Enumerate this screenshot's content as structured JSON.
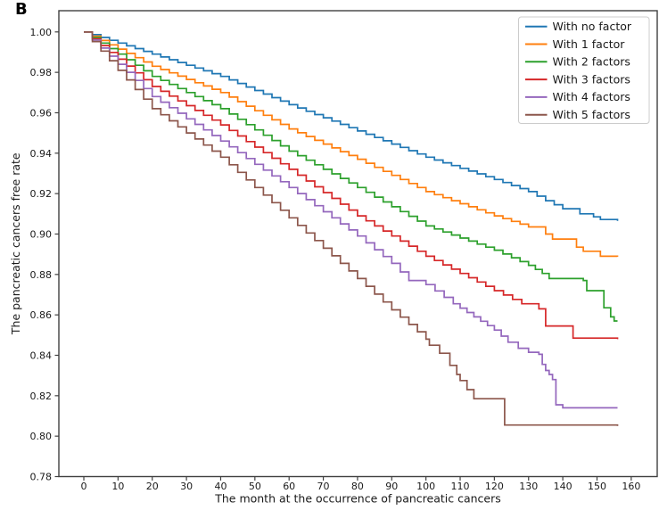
{
  "chart_data": {
    "type": "line",
    "subtype": "step-survival",
    "panel_label": "B",
    "title": "",
    "xlabel": "The month at the occurrence of pancreatic cancers",
    "ylabel": "The pancreatic cancers free rate",
    "xlim": [
      -7.3,
      167.6
    ],
    "ylim": [
      0.78,
      1.0105
    ],
    "x_ticks": [
      0,
      10,
      20,
      30,
      40,
      50,
      60,
      70,
      80,
      90,
      100,
      110,
      120,
      130,
      140,
      150,
      160
    ],
    "y_ticks": [
      0.78,
      0.8,
      0.82,
      0.84,
      0.86,
      0.88,
      0.9,
      0.92,
      0.94,
      0.96,
      0.98,
      1.0
    ],
    "grid": false,
    "legend_position": "upper right",
    "axis_color": "#404040",
    "series": [
      {
        "name": "With no factor",
        "color": "#1f77b4",
        "points": [
          [
            0,
            1.0
          ],
          [
            10,
            0.9945
          ],
          [
            20,
            0.989
          ],
          [
            30,
            0.9835
          ],
          [
            40,
            0.978
          ],
          [
            50,
            0.971
          ],
          [
            60,
            0.964
          ],
          [
            70,
            0.9575
          ],
          [
            80,
            0.951
          ],
          [
            90,
            0.9445
          ],
          [
            100,
            0.938
          ],
          [
            110,
            0.9325
          ],
          [
            120,
            0.927
          ],
          [
            130,
            0.921
          ],
          [
            135,
            0.9165
          ],
          [
            140,
            0.9125
          ],
          [
            145,
            0.91
          ],
          [
            149,
            0.9085
          ],
          [
            151,
            0.9072
          ],
          [
            156,
            0.9065
          ]
        ]
      },
      {
        "name": "With 1 factor",
        "color": "#ff7f0e",
        "points": [
          [
            0,
            1.0
          ],
          [
            10,
            0.9915
          ],
          [
            20,
            0.983
          ],
          [
            30,
            0.9765
          ],
          [
            40,
            0.97
          ],
          [
            50,
            0.961
          ],
          [
            60,
            0.952
          ],
          [
            70,
            0.9445
          ],
          [
            80,
            0.937
          ],
          [
            90,
            0.929
          ],
          [
            100,
            0.921
          ],
          [
            110,
            0.915
          ],
          [
            120,
            0.909
          ],
          [
            130,
            0.9035
          ],
          [
            135,
            0.9
          ],
          [
            137,
            0.8975
          ],
          [
            143,
            0.8975
          ],
          [
            144,
            0.8935
          ],
          [
            146,
            0.8915
          ],
          [
            150,
            0.8915
          ],
          [
            151,
            0.889
          ],
          [
            156,
            0.8888
          ]
        ]
      },
      {
        "name": "With 2 factors",
        "color": "#2ca02c",
        "points": [
          [
            0,
            1.0
          ],
          [
            10,
            0.989
          ],
          [
            20,
            0.978
          ],
          [
            30,
            0.97
          ],
          [
            40,
            0.962
          ],
          [
            50,
            0.9515
          ],
          [
            60,
            0.941
          ],
          [
            70,
            0.932
          ],
          [
            80,
            0.923
          ],
          [
            90,
            0.9135
          ],
          [
            100,
            0.904
          ],
          [
            110,
            0.898
          ],
          [
            120,
            0.892
          ],
          [
            130,
            0.8845
          ],
          [
            134,
            0.8805
          ],
          [
            136,
            0.878
          ],
          [
            146,
            0.877
          ],
          [
            147,
            0.872
          ],
          [
            151,
            0.872
          ],
          [
            152,
            0.8635
          ],
          [
            154,
            0.859
          ],
          [
            155,
            0.857
          ],
          [
            156,
            0.857
          ]
        ]
      },
      {
        "name": "With 3 factors",
        "color": "#d62728",
        "points": [
          [
            0,
            1.0
          ],
          [
            10,
            0.9865
          ],
          [
            20,
            0.973
          ],
          [
            30,
            0.9635
          ],
          [
            40,
            0.954
          ],
          [
            50,
            0.943
          ],
          [
            60,
            0.932
          ],
          [
            70,
            0.9205
          ],
          [
            80,
            0.909
          ],
          [
            90,
            0.899
          ],
          [
            100,
            0.889
          ],
          [
            110,
            0.8805
          ],
          [
            120,
            0.872
          ],
          [
            128,
            0.8655
          ],
          [
            133,
            0.863
          ],
          [
            135,
            0.8545
          ],
          [
            142,
            0.8545
          ],
          [
            143,
            0.8485
          ],
          [
            156,
            0.848
          ]
        ]
      },
      {
        "name": "With 4 factors",
        "color": "#9467bd",
        "points": [
          [
            0,
            1.0
          ],
          [
            10,
            0.984
          ],
          [
            20,
            0.968
          ],
          [
            30,
            0.957
          ],
          [
            40,
            0.946
          ],
          [
            50,
            0.9345
          ],
          [
            60,
            0.923
          ],
          [
            70,
            0.911
          ],
          [
            80,
            0.899
          ],
          [
            90,
            0.8855
          ],
          [
            95,
            0.877
          ],
          [
            100,
            0.875
          ],
          [
            108,
            0.8655
          ],
          [
            114,
            0.859
          ],
          [
            120,
            0.8525
          ],
          [
            124,
            0.8465
          ],
          [
            127,
            0.8435
          ],
          [
            130,
            0.8415
          ],
          [
            133,
            0.8405
          ],
          [
            134,
            0.8355
          ],
          [
            135,
            0.8325
          ],
          [
            136,
            0.8305
          ],
          [
            137,
            0.828
          ],
          [
            138,
            0.8155
          ],
          [
            140,
            0.814
          ],
          [
            156,
            0.814
          ]
        ]
      },
      {
        "name": "With 5 factors",
        "color": "#8c564b",
        "points": [
          [
            0,
            1.0
          ],
          [
            10,
            0.981
          ],
          [
            20,
            0.962
          ],
          [
            30,
            0.95
          ],
          [
            40,
            0.938
          ],
          [
            50,
            0.923
          ],
          [
            60,
            0.908
          ],
          [
            70,
            0.893
          ],
          [
            80,
            0.878
          ],
          [
            90,
            0.8625
          ],
          [
            100,
            0.848
          ],
          [
            101,
            0.845
          ],
          [
            104,
            0.841
          ],
          [
            107,
            0.835
          ],
          [
            109,
            0.8305
          ],
          [
            110,
            0.8275
          ],
          [
            112,
            0.823
          ],
          [
            114,
            0.8185
          ],
          [
            122,
            0.8185
          ],
          [
            123,
            0.8055
          ],
          [
            156,
            0.805
          ]
        ]
      }
    ]
  }
}
